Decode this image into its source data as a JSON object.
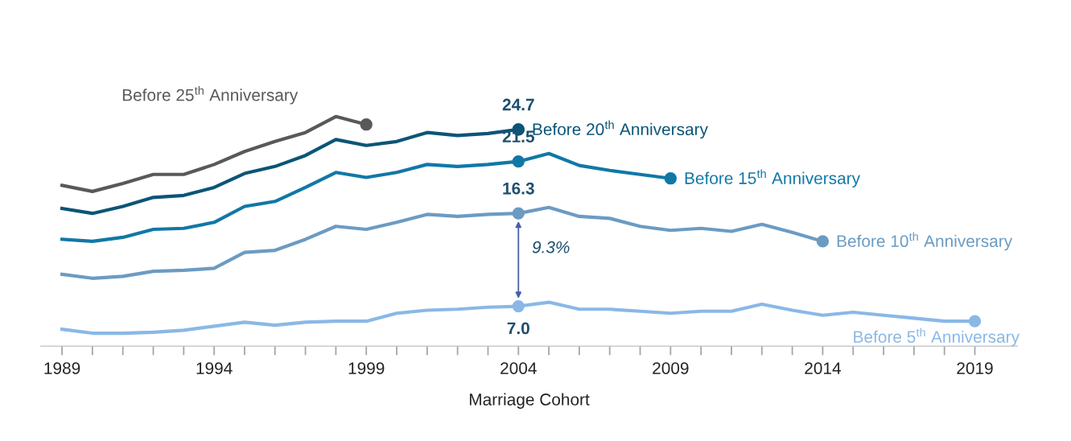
{
  "chart_data": {
    "type": "line",
    "xlabel": "Marriage Cohort",
    "x": [
      1989,
      1990,
      1991,
      1992,
      1993,
      1994,
      1995,
      1996,
      1997,
      1998,
      1999,
      2000,
      2001,
      2002,
      2003,
      2004,
      2005,
      2006,
      2007,
      2008,
      2009,
      2010,
      2011,
      2012,
      2013,
      2014,
      2015,
      2016,
      2017,
      2018,
      2019
    ],
    "xlim": [
      1988.3,
      2020.4
    ],
    "xticks": [
      1989,
      1994,
      1999,
      2004,
      2009,
      2014,
      2019
    ],
    "tick_labels": "x",
    "grid": false,
    "legend": false,
    "line_style": "solid",
    "series": [
      {
        "name": "Before 25$^{th}$ Anniversary",
        "color": "#595959",
        "values": [
          19.1,
          18.5,
          19.3,
          20.2,
          20.2,
          21.2,
          22.5,
          23.5,
          24.4,
          26.0,
          25.2,
          null,
          null,
          null,
          null,
          null,
          null,
          null,
          null,
          null,
          null,
          null,
          null,
          null,
          null,
          null,
          null,
          null,
          null,
          null,
          null
        ]
      },
      {
        "name": "Before 20$^{th}$ Anniversary",
        "color": "#0b5577",
        "values": [
          16.8,
          16.3,
          17.0,
          17.9,
          18.1,
          18.9,
          20.3,
          21.0,
          22.1,
          23.7,
          23.1,
          23.5,
          24.4,
          24.1,
          24.3,
          24.7,
          null,
          null,
          null,
          null,
          null,
          null,
          null,
          null,
          null,
          null,
          null,
          null,
          null,
          null,
          null
        ],
        "value_labels": [
          null,
          null,
          null,
          null,
          null,
          null,
          null,
          null,
          null,
          null,
          null,
          null,
          null,
          null,
          null,
          "24.7",
          null,
          null,
          null,
          null,
          null,
          null,
          null,
          null,
          null,
          null,
          null,
          null,
          null,
          null,
          null
        ]
      },
      {
        "name": "Before 15$^{th}$ Anniversary",
        "color": "#1178a6",
        "values": [
          13.7,
          13.5,
          13.9,
          14.7,
          14.8,
          15.4,
          17.0,
          17.5,
          18.9,
          20.4,
          19.9,
          20.4,
          21.2,
          21.0,
          21.2,
          21.5,
          22.3,
          21.1,
          20.6,
          20.2,
          19.8,
          null,
          null,
          null,
          null,
          null,
          null,
          null,
          null,
          null,
          null
        ],
        "value_labels": [
          null,
          null,
          null,
          null,
          null,
          null,
          null,
          null,
          null,
          null,
          null,
          null,
          null,
          null,
          null,
          "21.5",
          null,
          null,
          null,
          null,
          null,
          null,
          null,
          null,
          null,
          null,
          null,
          null,
          null,
          null,
          null
        ]
      },
      {
        "name": "Before 10$^{th}$ Anniversary",
        "color": "#6b9bc3",
        "values": [
          10.2,
          9.8,
          10.0,
          10.5,
          10.6,
          10.8,
          12.4,
          12.6,
          13.7,
          15.0,
          14.7,
          15.4,
          16.2,
          16.0,
          16.2,
          16.3,
          16.9,
          16.0,
          15.8,
          15.0,
          14.6,
          14.8,
          14.5,
          15.2,
          14.4,
          13.5,
          null,
          null,
          null,
          null,
          null
        ],
        "value_labels": [
          null,
          null,
          null,
          null,
          null,
          null,
          null,
          null,
          null,
          null,
          null,
          null,
          null,
          null,
          null,
          "16.3",
          null,
          null,
          null,
          null,
          null,
          null,
          null,
          null,
          null,
          null,
          null,
          null,
          null,
          null,
          null
        ]
      },
      {
        "name": "Before 5$^{th}$ Anniversary",
        "color": "#8ab8e6",
        "values": [
          4.7,
          4.3,
          4.3,
          4.4,
          4.6,
          5.0,
          5.4,
          5.1,
          5.4,
          5.5,
          5.5,
          6.3,
          6.6,
          6.7,
          6.9,
          7.0,
          7.4,
          6.7,
          6.7,
          6.5,
          6.3,
          6.5,
          6.5,
          7.2,
          6.6,
          6.1,
          6.4,
          6.1,
          5.8,
          5.5,
          5.5
        ],
        "value_labels": [
          null,
          null,
          null,
          null,
          null,
          null,
          null,
          null,
          null,
          null,
          null,
          null,
          null,
          null,
          null,
          "7.0",
          null,
          null,
          null,
          null,
          null,
          null,
          null,
          null,
          null,
          null,
          null,
          null,
          null,
          null,
          null
        ]
      }
    ],
    "annotations": [
      "9.3%"
    ]
  }
}
